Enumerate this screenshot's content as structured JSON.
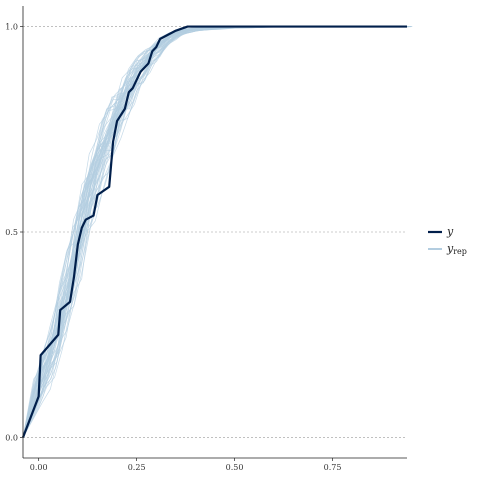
{
  "chart_data": {
    "type": "line",
    "title": "",
    "xlabel": "",
    "ylabel": "",
    "xlim": [
      -0.04,
      0.94
    ],
    "ylim": [
      -0.05,
      1.05
    ],
    "x_ticks": [
      0,
      0.25,
      0.5,
      0.75
    ],
    "x_tick_labels": [
      "0.00",
      "0.25",
      "0.50",
      "0.75"
    ],
    "y_ticks": [
      0,
      0.5,
      1.0
    ],
    "y_tick_labels": [
      "0.0",
      "0.5",
      "1.0"
    ],
    "y_gridlines": "dashed at y ticks",
    "legend_position": "right",
    "legend": [
      {
        "main": "y",
        "sub": "",
        "color": "#011f4b"
      },
      {
        "main": "y",
        "sub": "rep",
        "color": "#b3cde0"
      }
    ],
    "series": [
      {
        "name": "y",
        "color": "#011f4b",
        "x": [
          -0.04,
          0.0,
          0.005,
          0.05,
          0.055,
          0.08,
          0.09,
          0.1,
          0.11,
          0.12,
          0.14,
          0.15,
          0.18,
          0.19,
          0.2,
          0.22,
          0.23,
          0.24,
          0.25,
          0.26,
          0.27,
          0.28,
          0.29,
          0.3,
          0.31,
          0.33,
          0.35,
          0.38,
          0.4,
          0.5,
          0.75,
          0.94
        ],
        "y": [
          0.0,
          0.1,
          0.2,
          0.25,
          0.31,
          0.33,
          0.39,
          0.47,
          0.51,
          0.53,
          0.54,
          0.59,
          0.61,
          0.72,
          0.77,
          0.8,
          0.84,
          0.85,
          0.87,
          0.89,
          0.9,
          0.91,
          0.94,
          0.95,
          0.97,
          0.98,
          0.99,
          1.0,
          1.0,
          1.0,
          1.0,
          1.0
        ]
      }
    ],
    "yrep": {
      "name": "y_rep",
      "color": "#b3cde0",
      "count": 50,
      "x": [
        -0.04,
        0.0,
        0.02,
        0.04,
        0.06,
        0.08,
        0.1,
        0.12,
        0.14,
        0.16,
        0.18,
        0.2,
        0.22,
        0.24,
        0.26,
        0.28,
        0.3,
        0.32,
        0.34,
        0.36,
        0.38,
        0.4,
        0.45,
        0.5,
        0.55,
        0.6,
        0.7,
        0.8,
        0.94
      ],
      "y_center": [
        0.0,
        0.12,
        0.17,
        0.22,
        0.3,
        0.37,
        0.46,
        0.55,
        0.62,
        0.68,
        0.73,
        0.78,
        0.82,
        0.86,
        0.89,
        0.92,
        0.94,
        0.96,
        0.975,
        0.985,
        0.99,
        0.993,
        0.996,
        0.998,
        0.999,
        1.0,
        1.0,
        1.0,
        1.0
      ]
    }
  }
}
